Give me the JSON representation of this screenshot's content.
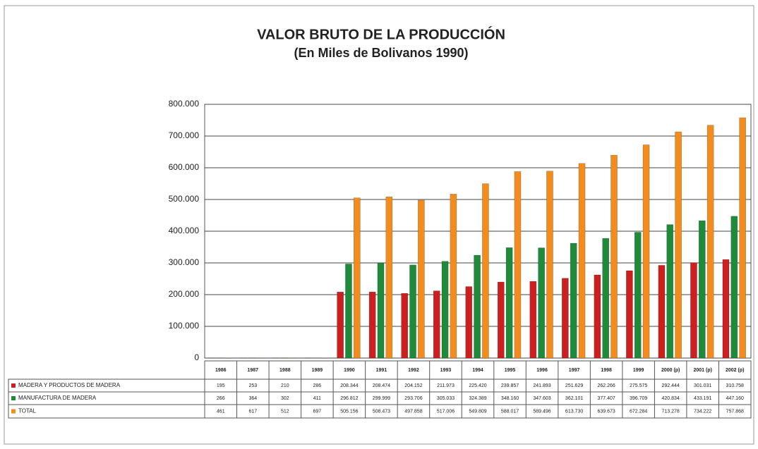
{
  "chart_data": {
    "type": "bar",
    "title": "VALOR BRUTO DE LA PRODUCCIÓN",
    "subtitle": "(En Miles de Bolivanos 1990)",
    "categories": [
      "1986",
      "1987",
      "1988",
      "1989",
      "1990",
      "1991",
      "1992",
      "1993",
      "1994",
      "1995",
      "1996",
      "1997",
      "1998",
      "1999",
      "2000 (p)",
      "2001 (p)",
      "2002 (p)"
    ],
    "series": [
      {
        "name": "MADERA Y PRODUCTOS DE MADERA",
        "color": "#cc1f1f",
        "values": [
          195,
          253,
          210,
          286,
          208344,
          208474,
          204152,
          211973,
          225420,
          239857,
          241893,
          251629,
          262266,
          275575,
          292444,
          301031,
          310758
        ],
        "value_labels": [
          "195",
          "253",
          "210",
          "286",
          "208.344",
          "208.474",
          "204.152",
          "211.973",
          "225.420",
          "239.857",
          "241.893",
          "251.629",
          "262.266",
          "275.575",
          "292.444",
          "301.031",
          "310.758"
        ]
      },
      {
        "name": "MANUFACTURA DE MADERA",
        "color": "#1e8a3a",
        "values": [
          266,
          364,
          302,
          411,
          296812,
          299999,
          293706,
          305033,
          324389,
          348160,
          347603,
          362101,
          377407,
          396709,
          420834,
          433191,
          447160
        ],
        "value_labels": [
          "266",
          "364",
          "302",
          "411",
          "296.812",
          "299.999",
          "293.706",
          "305.033",
          "324.389",
          "348.160",
          "347.603",
          "362.101",
          "377.407",
          "396.709",
          "420.834",
          "433.191",
          "447.160"
        ]
      },
      {
        "name": "TOTAL",
        "color": "#f28c1e",
        "values": [
          461,
          617,
          512,
          697,
          505156,
          508473,
          497858,
          517006,
          549809,
          588017,
          589496,
          613730,
          639673,
          672284,
          713278,
          734222,
          757868
        ],
        "value_labels": [
          "461",
          "617",
          "512",
          "697",
          "505.156",
          "508.473",
          "497.858",
          "517.006",
          "549.809",
          "588.017",
          "589.496",
          "613.730",
          "639.673",
          "672.284",
          "713.278",
          "734.222",
          "757.868"
        ]
      }
    ],
    "ylim": [
      0,
      800000
    ],
    "yticks": [
      0,
      {
        "value": 100000,
        "label": "100.000"
      },
      {
        "value": 200000,
        "label": "200.000"
      },
      {
        "value": 300000,
        "label": "300.000"
      },
      {
        "value": 400000,
        "label": "400.000"
      },
      {
        "value": 500000,
        "label": "500.000"
      },
      {
        "value": 600000,
        "label": "600.000"
      },
      {
        "value": 700000,
        "label": "700.000"
      },
      {
        "value": 800000,
        "label": "800.000"
      }
    ],
    "grid": true
  }
}
